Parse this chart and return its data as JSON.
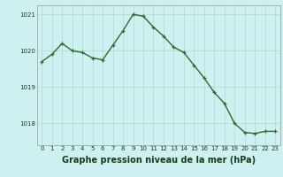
{
  "x": [
    0,
    1,
    2,
    3,
    4,
    5,
    6,
    7,
    8,
    9,
    10,
    11,
    12,
    13,
    14,
    15,
    16,
    17,
    18,
    19,
    20,
    21,
    22,
    23
  ],
  "y": [
    1019.7,
    1019.9,
    1020.2,
    1020.0,
    1019.95,
    1019.8,
    1019.75,
    1020.15,
    1020.55,
    1021.0,
    1020.95,
    1020.65,
    1020.4,
    1020.1,
    1019.95,
    1019.6,
    1019.25,
    1018.85,
    1018.55,
    1018.0,
    1017.75,
    1017.72,
    1017.78,
    1017.78
  ],
  "line_color": "#2d6a2d",
  "marker": "+",
  "marker_color": "#2d6a2d",
  "bg_color": "#cff0f0",
  "grid_color": "#aaddcc",
  "title": "Graphe pression niveau de la mer (hPa)",
  "title_color": "#1a3a1a",
  "ylim": [
    1017.4,
    1021.25
  ],
  "yticks": [
    1018,
    1019,
    1020,
    1021
  ],
  "xticks": [
    0,
    1,
    2,
    3,
    4,
    5,
    6,
    7,
    8,
    9,
    10,
    11,
    12,
    13,
    14,
    15,
    16,
    17,
    18,
    19,
    20,
    21,
    22,
    23
  ],
  "tick_color": "#1a3a1a",
  "tick_fontsize": 5.0,
  "title_fontsize": 7.0,
  "linewidth": 1.0,
  "markersize": 3.5,
  "xlim": [
    -0.5,
    23.5
  ]
}
